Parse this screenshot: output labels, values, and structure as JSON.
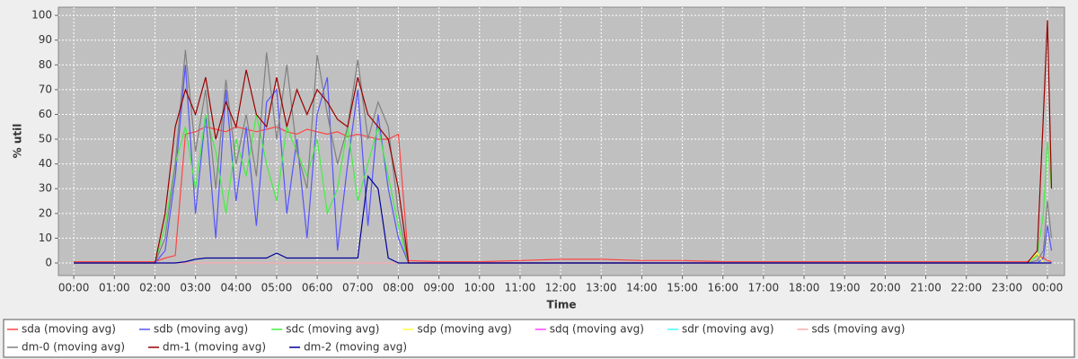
{
  "chart_data": {
    "type": "line",
    "y_label": "% util",
    "x_label": "Time",
    "x": [
      0,
      1,
      2,
      2.25,
      2.5,
      2.75,
      3,
      3.25,
      3.5,
      3.75,
      4,
      4.25,
      4.5,
      4.75,
      5,
      5.25,
      5.5,
      5.75,
      6,
      6.25,
      6.5,
      6.75,
      7,
      7.25,
      7.5,
      7.75,
      8,
      8.25,
      9,
      10,
      11,
      12,
      13,
      14,
      15,
      16,
      17,
      18,
      19,
      20,
      21,
      22,
      23,
      23.5,
      23.75,
      23.9,
      24.0,
      24.1
    ],
    "xlim": [
      -0.38,
      24.42
    ],
    "xticks": [
      {
        "value": 0,
        "label": "00:00"
      },
      {
        "value": 1,
        "label": "01:00"
      },
      {
        "value": 2,
        "label": "02:00"
      },
      {
        "value": 3,
        "label": "03:00"
      },
      {
        "value": 4,
        "label": "04:00"
      },
      {
        "value": 5,
        "label": "05:00"
      },
      {
        "value": 6,
        "label": "06:00"
      },
      {
        "value": 7,
        "label": "07:00"
      },
      {
        "value": 8,
        "label": "08:00"
      },
      {
        "value": 9,
        "label": "09:00"
      },
      {
        "value": 10,
        "label": "10:00"
      },
      {
        "value": 11,
        "label": "11:00"
      },
      {
        "value": 12,
        "label": "12:00"
      },
      {
        "value": 13,
        "label": "13:00"
      },
      {
        "value": 14,
        "label": "14:00"
      },
      {
        "value": 15,
        "label": "15:00"
      },
      {
        "value": 16,
        "label": "16:00"
      },
      {
        "value": 17,
        "label": "17:00"
      },
      {
        "value": 18,
        "label": "18:00"
      },
      {
        "value": 19,
        "label": "19:00"
      },
      {
        "value": 20,
        "label": "20:00"
      },
      {
        "value": 21,
        "label": "21:00"
      },
      {
        "value": 22,
        "label": "22:00"
      },
      {
        "value": 23,
        "label": "23:00"
      },
      {
        "value": 24,
        "label": "00:00"
      }
    ],
    "ylim": [
      -5.07,
      103.3
    ],
    "yticks": [
      0,
      10,
      20,
      30,
      40,
      50,
      60,
      70,
      80,
      90,
      100
    ],
    "grid": true,
    "legend": "bottom",
    "series": [
      {
        "name": "sda (moving avg)",
        "color": "#ff4444",
        "values": [
          0.5,
          0.5,
          0.5,
          2,
          3,
          52,
          53,
          55,
          54,
          53,
          55,
          54,
          53,
          54,
          55,
          53,
          52,
          54,
          53,
          52,
          53,
          51,
          52,
          51,
          50,
          50,
          52,
          1,
          0.5,
          0.5,
          1,
          1.5,
          1.5,
          1,
          1,
          0.5,
          0.5,
          0.5,
          0.5,
          0.5,
          0.5,
          0.5,
          0.5,
          0.5,
          3,
          2,
          1,
          0.5
        ]
      },
      {
        "name": "sdb (moving avg)",
        "color": "#5555ff",
        "values": [
          0,
          0,
          0,
          5,
          35,
          80,
          20,
          60,
          10,
          70,
          25,
          55,
          15,
          65,
          70,
          20,
          50,
          10,
          60,
          75,
          5,
          40,
          70,
          15,
          60,
          30,
          10,
          0,
          0,
          0,
          0,
          0,
          0,
          0,
          0,
          0,
          0,
          0,
          0,
          0,
          0,
          0,
          0,
          0,
          0,
          2,
          15,
          5
        ]
      },
      {
        "name": "sdc (moving avg)",
        "color": "#44ee44",
        "values": [
          0,
          0,
          0,
          15,
          40,
          55,
          30,
          60,
          45,
          20,
          50,
          35,
          60,
          40,
          25,
          55,
          45,
          35,
          50,
          20,
          30,
          55,
          25,
          40,
          55,
          35,
          15,
          0,
          0,
          0,
          0,
          0,
          0,
          0,
          0,
          0,
          0,
          0,
          0,
          0,
          0,
          0,
          0,
          0,
          3,
          20,
          49,
          30
        ]
      },
      {
        "name": "sdp (moving avg)",
        "color": "#ffff44",
        "values": [
          0,
          0,
          0,
          0,
          0,
          0,
          0,
          0,
          0,
          0,
          0,
          0,
          0,
          0,
          0,
          0,
          0,
          0,
          0,
          0,
          0,
          0,
          0,
          0,
          0,
          0,
          0,
          0,
          0,
          0,
          0,
          0,
          0,
          0,
          0,
          0,
          0,
          0,
          0,
          0,
          0,
          0,
          0,
          0,
          4,
          0,
          0,
          0
        ]
      },
      {
        "name": "sdq (moving avg)",
        "color": "#ff44ff",
        "values": [
          0,
          0,
          0,
          0,
          0,
          0,
          0,
          0,
          0,
          0,
          0,
          0,
          0,
          0,
          0,
          0,
          0,
          0,
          0,
          0,
          0,
          0,
          0,
          0,
          0,
          0,
          0,
          0,
          0,
          0,
          0,
          0,
          0,
          0,
          0,
          0,
          0,
          0,
          0,
          0,
          0,
          0,
          0,
          0,
          0,
          0,
          0,
          0
        ]
      },
      {
        "name": "sdr (moving avg)",
        "color": "#44ffff",
        "values": [
          0,
          0,
          0,
          0,
          0,
          0,
          0,
          0,
          0,
          0,
          0,
          0,
          0,
          0,
          0,
          0,
          0,
          0,
          0,
          0,
          0,
          0,
          0,
          0,
          0,
          0,
          0,
          0,
          0,
          0,
          0,
          0,
          0,
          0,
          0,
          0,
          0,
          0,
          0,
          0,
          0,
          0,
          0,
          0,
          0,
          0,
          0,
          0
        ]
      },
      {
        "name": "sds (moving avg)",
        "color": "#ffaaaa",
        "values": [
          0,
          0,
          0,
          0,
          0,
          0,
          0,
          0,
          0,
          0,
          0,
          0,
          0,
          0,
          0,
          0,
          0,
          0,
          0,
          0,
          0,
          0,
          0,
          0,
          0,
          0,
          0,
          0,
          0,
          0,
          0,
          0,
          0,
          0,
          0,
          0,
          0,
          0,
          0,
          0,
          0,
          0,
          0,
          0,
          0,
          0,
          0,
          0
        ]
      },
      {
        "name": "dm-0 (moving avg)",
        "color": "#808080",
        "values": [
          0,
          0,
          0,
          10,
          40,
          86,
          45,
          70,
          30,
          74,
          40,
          60,
          35,
          85,
          50,
          80,
          45,
          30,
          84,
          60,
          40,
          55,
          82,
          50,
          65,
          55,
          20,
          0,
          0,
          0,
          0,
          0,
          0,
          0,
          0,
          0,
          0,
          0,
          0,
          0,
          0,
          0,
          0,
          0,
          1,
          5,
          25,
          10
        ]
      },
      {
        "name": "dm-1 (moving avg)",
        "color": "#990000",
        "values": [
          0,
          0,
          0,
          20,
          55,
          70,
          60,
          75,
          50,
          65,
          55,
          78,
          60,
          55,
          75,
          55,
          70,
          60,
          70,
          65,
          58,
          55,
          75,
          60,
          55,
          50,
          30,
          0,
          0,
          0,
          0,
          0,
          0,
          0,
          0,
          0,
          0,
          0,
          0,
          0,
          0,
          0,
          0,
          0,
          5,
          60,
          98,
          30
        ]
      },
      {
        "name": "dm-2 (moving avg)",
        "color": "#000099",
        "values": [
          0,
          0,
          0,
          0,
          0,
          0.5,
          1.5,
          2,
          2,
          2,
          2,
          2,
          2,
          2,
          4,
          2,
          2,
          2,
          2,
          2,
          2,
          2,
          2,
          35,
          30,
          2,
          0,
          0,
          0,
          0,
          0,
          0,
          0,
          0,
          0,
          0,
          0,
          0,
          0,
          0,
          0,
          0,
          0,
          0,
          0,
          0,
          0,
          0
        ]
      }
    ]
  }
}
